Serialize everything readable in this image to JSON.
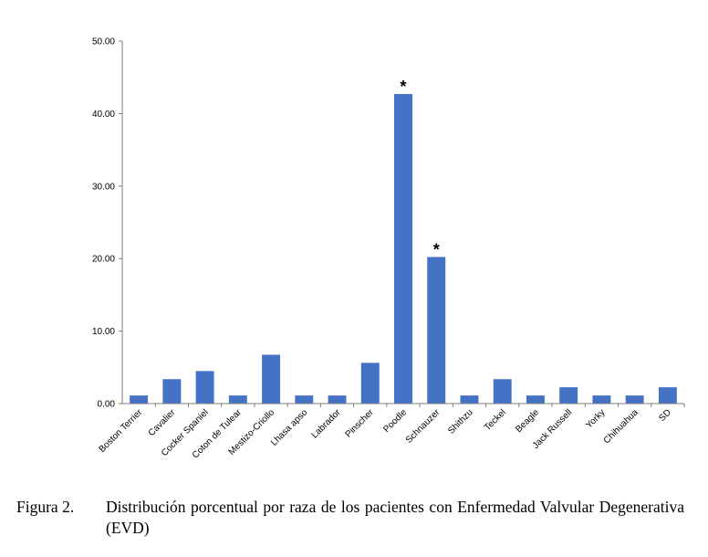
{
  "caption": {
    "label": "Figura 2.",
    "text": "Distribución porcentual por raza de los pacientes con Enfermedad Valvular Degenerativa (EVD)"
  },
  "chart_data": {
    "type": "bar",
    "categories": [
      "Boston Terrier",
      "Cavalier",
      "Cocker Spaniel",
      "Coton de Tulear",
      "Mestizo-Criollo",
      "Lhasa apso",
      "Labrador",
      "Pinscher",
      "Poodle",
      "Schnauzer",
      "Shithzu",
      "Teckel",
      "Beagle",
      "Jack Russell",
      "Yorky",
      "Chihuahua",
      "SD"
    ],
    "values": [
      1.12,
      3.37,
      4.49,
      1.12,
      6.74,
      1.12,
      1.12,
      5.62,
      42.7,
      20.22,
      1.12,
      3.37,
      1.12,
      2.25,
      1.12,
      1.12,
      2.25
    ],
    "annotations": [
      {
        "category": "Poodle",
        "text": "*"
      },
      {
        "category": "Schnauzer",
        "text": "*"
      }
    ],
    "yticks": [
      "0.00",
      "10.00",
      "20.00",
      "30.00",
      "40.00",
      "50.00"
    ],
    "ylim": [
      0,
      50
    ],
    "bar_color": "#4472C4",
    "grid": false
  }
}
